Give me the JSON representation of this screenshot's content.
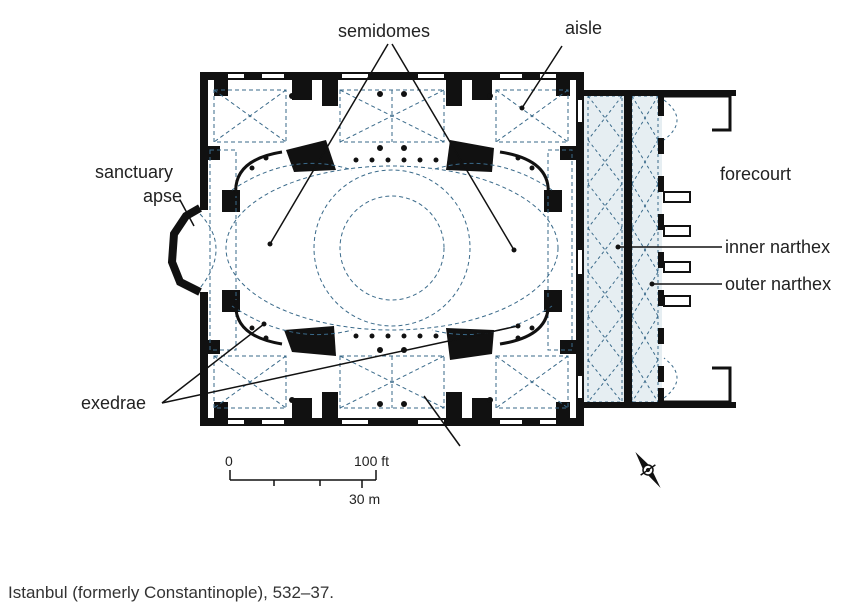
{
  "labels": {
    "semidomes": "semidomes",
    "aisle": "aisle",
    "sanctuary_line1": "sanctuary",
    "sanctuary_line2": "apse",
    "forecourt": "forecourt",
    "inner_narthex": "inner narthex",
    "outer_narthex": "outer narthex",
    "exedrae": "exedrae"
  },
  "scale": {
    "zero": "0",
    "feet": "100 ft",
    "meters": "30 m"
  },
  "icons": {
    "north": "north-arrow-icon"
  },
  "colors": {
    "wall": "#111111",
    "vault": "#3a6a8a",
    "narthex_fill": "#e6eef2"
  },
  "caption": "Istanbul (formerly Constantinople), 532–37."
}
